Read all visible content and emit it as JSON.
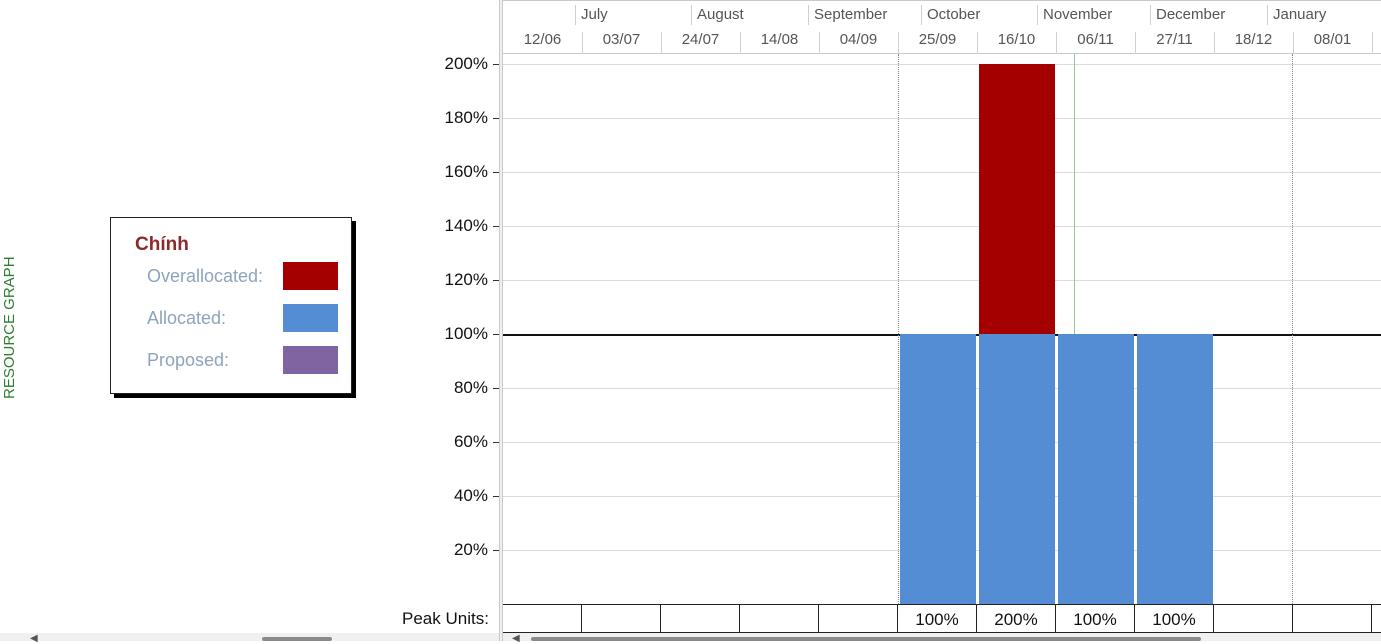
{
  "pane_label": "RESOURCE GRAPH",
  "legend": {
    "title": "Chính",
    "rows": [
      {
        "label": "Overallocated:",
        "color": "#a40000"
      },
      {
        "label": "Allocated:",
        "color": "#548dd4"
      },
      {
        "label": "Proposed:",
        "color": "#8064a2"
      }
    ]
  },
  "peak_units_label": "Peak Units:",
  "timescale": {
    "months": [
      "July",
      "August",
      "September",
      "October",
      "November",
      "December",
      "January"
    ],
    "weeks": [
      "12/06",
      "03/07",
      "24/07",
      "14/08",
      "04/09",
      "25/09",
      "16/10",
      "06/11",
      "27/11",
      "18/12",
      "08/01"
    ]
  },
  "chart_data": {
    "type": "bar",
    "categories": [
      "12/06",
      "03/07",
      "24/07",
      "14/08",
      "04/09",
      "25/09",
      "16/10",
      "06/11",
      "27/11",
      "18/12",
      "08/01"
    ],
    "series": [
      {
        "name": "Allocated",
        "values": [
          0,
          0,
          0,
          0,
          0,
          100,
          100,
          100,
          100,
          0,
          0
        ],
        "color": "#548dd4"
      },
      {
        "name": "Overallocated",
        "values": [
          0,
          0,
          0,
          0,
          0,
          0,
          100,
          0,
          0,
          0,
          0
        ],
        "color": "#a40000"
      }
    ],
    "y_ticks": [
      "200%",
      "180%",
      "160%",
      "140%",
      "120%",
      "100%",
      "80%",
      "60%",
      "40%",
      "20%"
    ],
    "ylim": [
      0,
      200
    ],
    "reference_line": 100,
    "peak_units": [
      "",
      "",
      "",
      "",
      "",
      "100%",
      "200%",
      "100%",
      "100%",
      "",
      ""
    ]
  }
}
